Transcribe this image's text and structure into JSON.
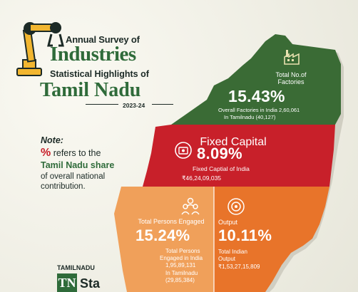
{
  "header": {
    "line1": "Annual Survey of",
    "line2": "Industries",
    "line3": "Statistical Highlights of",
    "line4": "Tamil Nadu",
    "year": "2023-24"
  },
  "note": {
    "label": "Note:",
    "percent_symbol": "%",
    "line1_rest": " refers to the",
    "line2": "Tamil Nadu share",
    "line3": "of overall national",
    "line4": "contribution."
  },
  "stats": {
    "factories": {
      "label_1": "Total No.of",
      "label_2": "Factories",
      "value": "15.43%",
      "sub_1": "Overall Factories in India 2,60,061",
      "sub_2": "In Tamilnadu (40,127)",
      "icon": "factory-icon"
    },
    "fixed_capital": {
      "label": "Fixed Capital",
      "value": "8.09%",
      "sub_1": "Fixed Captial of India",
      "sub_2": "₹46,24,09,035",
      "icon": "capital-icon"
    },
    "persons": {
      "label": "Total Persons Engaged",
      "value": "15.24%",
      "sub_1": "Total Persons",
      "sub_2": "Engaged in India",
      "sub_3": "1,95,89,131",
      "sub_4": "In Tamilnadu",
      "sub_5": "(29,85,384)",
      "icon": "people-icon"
    },
    "output": {
      "label": "Output",
      "value": "10.11%",
      "sub_1": "Total Indian",
      "sub_2": "Output",
      "sub_3": "₹1,53,27,15,809",
      "icon": "target-icon"
    }
  },
  "footer": {
    "label": "TAMILNADU",
    "logo_letters": "TN",
    "partial": "Sta"
  },
  "colors": {
    "green": "#3a6b35",
    "red": "#c8202a",
    "orange_light": "#f0a05a",
    "orange": "#e8742a",
    "title_green": "#2f6b3a"
  }
}
